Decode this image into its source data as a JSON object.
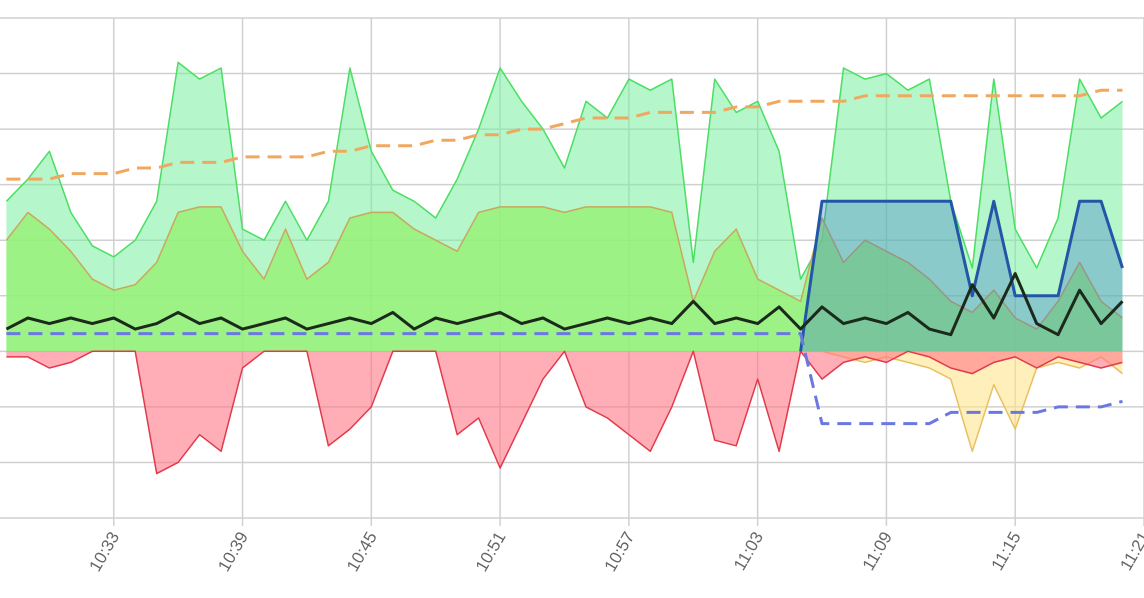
{
  "chart_data": {
    "type": "area",
    "x": [
      628,
      629,
      630,
      631,
      632,
      633,
      634,
      635,
      636,
      637,
      638,
      639,
      640,
      641,
      642,
      643,
      644,
      645,
      646,
      647,
      648,
      649,
      650,
      651,
      652,
      653,
      654,
      655,
      656,
      657,
      658,
      659,
      660,
      661,
      662,
      663,
      664,
      665,
      666,
      667,
      668,
      669,
      670,
      671,
      672,
      673,
      674,
      675,
      676,
      677,
      678,
      679,
      680
    ],
    "xlim": [
      627.7,
      681
    ],
    "xticks": [
      {
        "value": 633,
        "label": "10:33"
      },
      {
        "value": 639,
        "label": "10:39"
      },
      {
        "value": 645,
        "label": "10:45"
      },
      {
        "value": 651,
        "label": "10:51"
      },
      {
        "value": 657,
        "label": "10:57"
      },
      {
        "value": 663,
        "label": "11:03"
      },
      {
        "value": 669,
        "label": "11:09"
      },
      {
        "value": 675,
        "label": "11:15"
      },
      {
        "value": 681,
        "label": "11:21"
      }
    ],
    "ylim": [
      -3,
      6
    ],
    "yticks": [
      -3,
      -2,
      -1,
      0,
      1,
      2,
      3,
      4,
      5,
      6
    ],
    "grid": true,
    "series": [
      {
        "color": "#4ade62",
        "fill": "rgba(120,238,160,0.55)",
        "area": true,
        "values": [
          2.7,
          3.1,
          3.6,
          2.5,
          1.9,
          1.7,
          2.0,
          2.7,
          5.2,
          4.9,
          5.1,
          2.2,
          2.0,
          2.7,
          2.0,
          2.7,
          5.1,
          3.6,
          2.9,
          2.7,
          2.4,
          3.1,
          4.0,
          5.1,
          4.5,
          4.0,
          3.3,
          4.5,
          4.2,
          4.9,
          4.7,
          4.9,
          1.6,
          4.9,
          4.3,
          4.5,
          3.6,
          1.3,
          2.0,
          5.1,
          4.9,
          5.0,
          4.7,
          4.9,
          2.7,
          1.5,
          4.9,
          2.2,
          1.5,
          2.4,
          4.9,
          4.2,
          4.5
        ]
      },
      {
        "color": "#c9a85e",
        "fill": "rgba(150,240,110,0.75)",
        "area": true,
        "values": [
          2.0,
          2.5,
          2.2,
          1.8,
          1.3,
          1.1,
          1.2,
          1.6,
          2.5,
          2.6,
          2.6,
          1.8,
          1.3,
          2.2,
          1.3,
          1.6,
          2.4,
          2.5,
          2.5,
          2.2,
          2.0,
          1.8,
          2.5,
          2.6,
          2.6,
          2.6,
          2.5,
          2.6,
          2.6,
          2.6,
          2.6,
          2.5,
          0.9,
          1.8,
          2.2,
          1.3,
          1.1,
          0.9,
          2.4,
          1.6,
          2.0,
          1.8,
          1.6,
          1.3,
          0.9,
          0.7,
          1.1,
          0.6,
          0.4,
          0.9,
          1.6,
          0.9,
          0.6
        ]
      },
      {
        "color": "#e8c060",
        "fill": "rgba(255,228,140,0.6)",
        "area": true,
        "values": [
          null,
          null,
          null,
          null,
          null,
          null,
          null,
          null,
          null,
          null,
          null,
          null,
          null,
          null,
          null,
          null,
          null,
          null,
          null,
          null,
          null,
          null,
          null,
          null,
          null,
          null,
          null,
          null,
          null,
          null,
          null,
          null,
          null,
          null,
          null,
          null,
          null,
          null,
          0,
          -0.1,
          -0.2,
          -0.1,
          -0.2,
          -0.3,
          -0.5,
          -1.8,
          -0.6,
          -1.4,
          -0.3,
          -0.2,
          -0.3,
          -0.1,
          -0.4
        ]
      },
      {
        "color": "#e23a4a",
        "fill": "rgba(255,120,135,0.6)",
        "area": true,
        "values": [
          -0.1,
          -0.1,
          -0.3,
          -0.2,
          0,
          0,
          0,
          -2.2,
          -2.0,
          -1.5,
          -1.8,
          -0.3,
          0,
          0,
          0,
          -1.7,
          -1.4,
          -1.0,
          0,
          0,
          0,
          -1.5,
          -1.2,
          -2.1,
          -1.3,
          -0.5,
          0,
          -1.0,
          -1.2,
          -1.5,
          -1.8,
          -1.0,
          0,
          -1.6,
          -1.7,
          -0.5,
          -1.8,
          0,
          -0.5,
          -0.2,
          -0.1,
          -0.2,
          0,
          -0.1,
          -0.3,
          -0.4,
          -0.2,
          -0.1,
          -0.3,
          -0.1,
          -0.2,
          -0.3,
          -0.2
        ]
      },
      {
        "color": "#2456a8",
        "fill": "rgba(60,120,200,0.35)",
        "area": true,
        "values": [
          null,
          null,
          null,
          null,
          null,
          null,
          null,
          null,
          null,
          null,
          null,
          null,
          null,
          null,
          null,
          null,
          null,
          null,
          null,
          null,
          null,
          null,
          null,
          null,
          null,
          null,
          null,
          null,
          null,
          null,
          null,
          null,
          null,
          null,
          null,
          null,
          null,
          0,
          2.7,
          2.7,
          2.7,
          2.7,
          2.7,
          2.7,
          2.7,
          1.0,
          2.7,
          1.0,
          1.0,
          1.0,
          2.7,
          2.7,
          1.5
        ]
      },
      {
        "color": "#6a78e0",
        "dashed": true,
        "values": [
          0.32,
          0.32,
          0.32,
          0.32,
          0.32,
          0.32,
          0.32,
          0.32,
          0.32,
          0.32,
          0.32,
          0.32,
          0.32,
          0.32,
          0.32,
          0.32,
          0.32,
          0.32,
          0.32,
          0.32,
          0.32,
          0.32,
          0.32,
          0.32,
          0.32,
          0.32,
          0.32,
          0.32,
          0.32,
          0.32,
          0.32,
          0.32,
          0.32,
          0.32,
          0.32,
          0.32,
          0.32,
          0.32,
          -1.3,
          -1.3,
          -1.3,
          -1.3,
          -1.3,
          -1.3,
          -1.1,
          -1.1,
          -1.1,
          -1.1,
          -1.1,
          -1.0,
          -1.0,
          -1.0,
          -0.9
        ]
      },
      {
        "color": "#f0a860",
        "dashed": true,
        "values": [
          3.1,
          3.1,
          3.1,
          3.2,
          3.2,
          3.2,
          3.3,
          3.3,
          3.4,
          3.4,
          3.4,
          3.5,
          3.5,
          3.5,
          3.5,
          3.6,
          3.6,
          3.7,
          3.7,
          3.7,
          3.8,
          3.8,
          3.9,
          3.9,
          4.0,
          4.0,
          4.1,
          4.2,
          4.2,
          4.2,
          4.3,
          4.3,
          4.3,
          4.3,
          4.4,
          4.4,
          4.5,
          4.5,
          4.5,
          4.5,
          4.6,
          4.6,
          4.6,
          4.6,
          4.6,
          4.6,
          4.6,
          4.6,
          4.6,
          4.6,
          4.6,
          4.7,
          4.7
        ]
      },
      {
        "color": "#1c2a1c",
        "values": [
          0.4,
          0.6,
          0.5,
          0.6,
          0.5,
          0.6,
          0.4,
          0.5,
          0.7,
          0.5,
          0.6,
          0.4,
          0.5,
          0.6,
          0.4,
          0.5,
          0.6,
          0.5,
          0.7,
          0.4,
          0.6,
          0.5,
          0.6,
          0.7,
          0.5,
          0.6,
          0.4,
          0.5,
          0.6,
          0.5,
          0.6,
          0.5,
          0.9,
          0.5,
          0.6,
          0.5,
          0.8,
          0.4,
          0.8,
          0.5,
          0.6,
          0.5,
          0.7,
          0.4,
          0.3,
          1.2,
          0.6,
          1.4,
          0.5,
          0.3,
          1.1,
          0.5,
          0.9
        ]
      }
    ]
  }
}
